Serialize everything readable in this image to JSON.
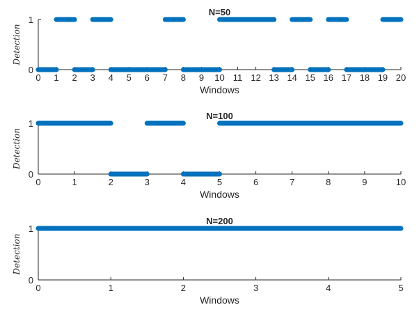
{
  "chart_data": [
    {
      "type": "line",
      "title": "N=50",
      "xlabel": "Windows",
      "ylabel": "Detection",
      "xlim": [
        0,
        20
      ],
      "ylim": [
        0,
        1
      ],
      "xticks": [
        0,
        1,
        2,
        3,
        4,
        5,
        6,
        7,
        8,
        9,
        10,
        11,
        12,
        13,
        14,
        15,
        16,
        17,
        18,
        19,
        20
      ],
      "yticks": [
        0,
        1
      ],
      "grid": false,
      "color": "#0072BD",
      "segments": [
        {
          "x": [
            0,
            1
          ],
          "y": 0
        },
        {
          "x": [
            1,
            2
          ],
          "y": 1
        },
        {
          "x": [
            2,
            3
          ],
          "y": 0
        },
        {
          "x": [
            3,
            4
          ],
          "y": 1
        },
        {
          "x": [
            4,
            7
          ],
          "y": 0
        },
        {
          "x": [
            7,
            8
          ],
          "y": 1
        },
        {
          "x": [
            8,
            10
          ],
          "y": 0
        },
        {
          "x": [
            10,
            13
          ],
          "y": 1
        },
        {
          "x": [
            13,
            14
          ],
          "y": 0
        },
        {
          "x": [
            14,
            15
          ],
          "y": 1
        },
        {
          "x": [
            15,
            16
          ],
          "y": 0
        },
        {
          "x": [
            16,
            17
          ],
          "y": 1
        },
        {
          "x": [
            17,
            19
          ],
          "y": 0
        },
        {
          "x": [
            19,
            20
          ],
          "y": 1
        }
      ]
    },
    {
      "type": "line",
      "title": "N=100",
      "xlabel": "Windows",
      "ylabel": "Detection",
      "xlim": [
        0,
        10
      ],
      "ylim": [
        0,
        1
      ],
      "xticks": [
        0,
        1,
        2,
        3,
        4,
        5,
        6,
        7,
        8,
        9,
        10
      ],
      "yticks": [
        0,
        1
      ],
      "grid": false,
      "color": "#0072BD",
      "segments": [
        {
          "x": [
            0,
            2
          ],
          "y": 1
        },
        {
          "x": [
            2,
            3
          ],
          "y": 0
        },
        {
          "x": [
            3,
            4
          ],
          "y": 1
        },
        {
          "x": [
            4,
            5
          ],
          "y": 0
        },
        {
          "x": [
            5,
            10
          ],
          "y": 1
        }
      ]
    },
    {
      "type": "line",
      "title": "N=200",
      "xlabel": "Windows",
      "ylabel": "Detection",
      "xlim": [
        0,
        5
      ],
      "ylim": [
        0,
        1
      ],
      "xticks": [
        0,
        1,
        2,
        3,
        4,
        5
      ],
      "yticks": [
        0,
        1
      ],
      "grid": false,
      "color": "#0072BD",
      "segments": [
        {
          "x": [
            0,
            5
          ],
          "y": 1
        }
      ]
    }
  ]
}
